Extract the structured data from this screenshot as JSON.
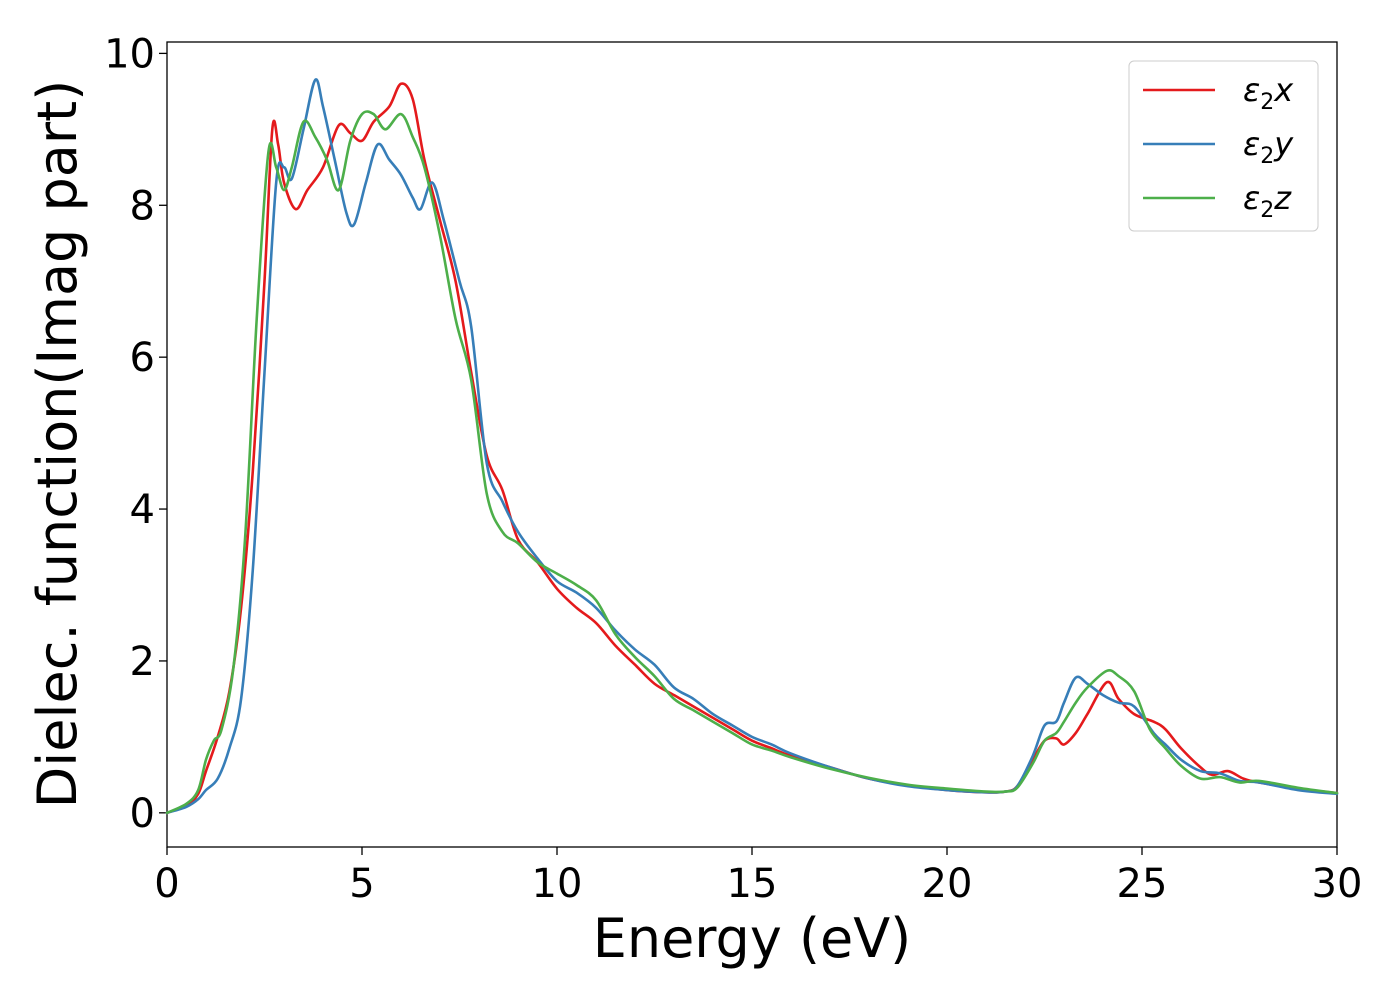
{
  "chart_data": {
    "type": "line",
    "title": "",
    "xlabel": "Energy (eV)",
    "ylabel": "Dielec. function(Imag part)",
    "xlim": [
      0,
      30
    ],
    "ylim": [
      -0.45,
      10.15
    ],
    "xticks": [
      0,
      5,
      10,
      15,
      20,
      25,
      30
    ],
    "yticks": [
      0,
      2,
      4,
      6,
      8,
      10
    ],
    "xtick_labels": [
      "0",
      "5",
      "10",
      "15",
      "20",
      "25",
      "30"
    ],
    "ytick_labels": [
      "0",
      "2",
      "4",
      "6",
      "8",
      "10"
    ],
    "grid": false,
    "legend_position": "top-right",
    "series": [
      {
        "name": "ε₂x",
        "legend_base": "ε",
        "legend_sub": "2",
        "legend_tail": "x",
        "color": "#e41a1c",
        "points": [
          [
            0,
            0
          ],
          [
            0.5,
            0.1
          ],
          [
            0.8,
            0.25
          ],
          [
            1.0,
            0.55
          ],
          [
            1.3,
            1.0
          ],
          [
            1.6,
            1.6
          ],
          [
            1.9,
            2.7
          ],
          [
            2.2,
            4.5
          ],
          [
            2.5,
            7.0
          ],
          [
            2.7,
            9.0
          ],
          [
            2.85,
            8.8
          ],
          [
            3.0,
            8.3
          ],
          [
            3.3,
            7.95
          ],
          [
            3.6,
            8.2
          ],
          [
            4.0,
            8.5
          ],
          [
            4.4,
            9.05
          ],
          [
            4.7,
            8.95
          ],
          [
            5.0,
            8.85
          ],
          [
            5.3,
            9.1
          ],
          [
            5.7,
            9.3
          ],
          [
            6.0,
            9.6
          ],
          [
            6.3,
            9.4
          ],
          [
            6.6,
            8.6
          ],
          [
            7.0,
            7.8
          ],
          [
            7.4,
            7.0
          ],
          [
            7.8,
            5.8
          ],
          [
            8.2,
            4.7
          ],
          [
            8.6,
            4.25
          ],
          [
            9.0,
            3.6
          ],
          [
            9.5,
            3.3
          ],
          [
            10.0,
            2.95
          ],
          [
            10.5,
            2.7
          ],
          [
            11.0,
            2.5
          ],
          [
            11.5,
            2.2
          ],
          [
            12.0,
            1.95
          ],
          [
            12.5,
            1.7
          ],
          [
            13.0,
            1.55
          ],
          [
            13.5,
            1.4
          ],
          [
            14.0,
            1.25
          ],
          [
            14.5,
            1.1
          ],
          [
            15.0,
            0.95
          ],
          [
            15.5,
            0.85
          ],
          [
            16.0,
            0.75
          ],
          [
            17.0,
            0.6
          ],
          [
            18.0,
            0.45
          ],
          [
            19.0,
            0.36
          ],
          [
            20.0,
            0.3
          ],
          [
            21.0,
            0.27
          ],
          [
            21.5,
            0.28
          ],
          [
            21.8,
            0.35
          ],
          [
            22.2,
            0.7
          ],
          [
            22.5,
            0.95
          ],
          [
            22.8,
            0.98
          ],
          [
            23.0,
            0.9
          ],
          [
            23.3,
            1.05
          ],
          [
            23.6,
            1.3
          ],
          [
            24.1,
            1.72
          ],
          [
            24.4,
            1.5
          ],
          [
            24.8,
            1.3
          ],
          [
            25.3,
            1.2
          ],
          [
            25.6,
            1.1
          ],
          [
            26.0,
            0.85
          ],
          [
            26.5,
            0.6
          ],
          [
            26.8,
            0.5
          ],
          [
            27.2,
            0.55
          ],
          [
            27.6,
            0.45
          ],
          [
            28.0,
            0.4
          ],
          [
            29.0,
            0.32
          ],
          [
            30.0,
            0.26
          ]
        ]
      },
      {
        "name": "ε₂y",
        "legend_base": "ε",
        "legend_sub": "2",
        "legend_tail": "y",
        "color": "#377eb8",
        "points": [
          [
            0,
            0
          ],
          [
            0.5,
            0.08
          ],
          [
            0.8,
            0.18
          ],
          [
            1.0,
            0.3
          ],
          [
            1.3,
            0.45
          ],
          [
            1.6,
            0.85
          ],
          [
            1.9,
            1.5
          ],
          [
            2.2,
            3.2
          ],
          [
            2.5,
            5.8
          ],
          [
            2.8,
            8.3
          ],
          [
            3.0,
            8.5
          ],
          [
            3.2,
            8.35
          ],
          [
            3.5,
            9.0
          ],
          [
            3.8,
            9.65
          ],
          [
            4.0,
            9.3
          ],
          [
            4.3,
            8.6
          ],
          [
            4.6,
            7.9
          ],
          [
            4.8,
            7.75
          ],
          [
            5.1,
            8.3
          ],
          [
            5.4,
            8.8
          ],
          [
            5.7,
            8.6
          ],
          [
            6.0,
            8.4
          ],
          [
            6.3,
            8.1
          ],
          [
            6.5,
            7.95
          ],
          [
            6.8,
            8.3
          ],
          [
            7.1,
            7.8
          ],
          [
            7.5,
            7.0
          ],
          [
            7.8,
            6.4
          ],
          [
            8.2,
            4.6
          ],
          [
            8.6,
            4.1
          ],
          [
            9.0,
            3.7
          ],
          [
            9.5,
            3.35
          ],
          [
            10.0,
            3.05
          ],
          [
            10.5,
            2.9
          ],
          [
            11.0,
            2.7
          ],
          [
            11.5,
            2.4
          ],
          [
            12.0,
            2.15
          ],
          [
            12.5,
            1.95
          ],
          [
            13.0,
            1.65
          ],
          [
            13.5,
            1.5
          ],
          [
            14.0,
            1.3
          ],
          [
            14.5,
            1.15
          ],
          [
            15.0,
            1.0
          ],
          [
            15.5,
            0.9
          ],
          [
            16.0,
            0.78
          ],
          [
            17.0,
            0.6
          ],
          [
            18.0,
            0.45
          ],
          [
            19.0,
            0.35
          ],
          [
            20.0,
            0.3
          ],
          [
            21.0,
            0.27
          ],
          [
            21.5,
            0.28
          ],
          [
            21.8,
            0.35
          ],
          [
            22.2,
            0.75
          ],
          [
            22.5,
            1.15
          ],
          [
            22.8,
            1.2
          ],
          [
            23.0,
            1.45
          ],
          [
            23.3,
            1.78
          ],
          [
            23.6,
            1.7
          ],
          [
            24.0,
            1.55
          ],
          [
            24.4,
            1.45
          ],
          [
            24.8,
            1.4
          ],
          [
            25.3,
            1.05
          ],
          [
            25.6,
            0.9
          ],
          [
            26.0,
            0.7
          ],
          [
            26.5,
            0.55
          ],
          [
            27.0,
            0.52
          ],
          [
            27.5,
            0.42
          ],
          [
            28.0,
            0.4
          ],
          [
            29.0,
            0.3
          ],
          [
            30.0,
            0.25
          ]
        ]
      },
      {
        "name": "ε₂z",
        "legend_base": "ε",
        "legend_sub": "2",
        "legend_tail": "z",
        "color": "#4daf4a",
        "points": [
          [
            0,
            0
          ],
          [
            0.5,
            0.12
          ],
          [
            0.8,
            0.3
          ],
          [
            1.0,
            0.7
          ],
          [
            1.2,
            0.95
          ],
          [
            1.4,
            1.1
          ],
          [
            1.7,
            1.9
          ],
          [
            2.0,
            3.6
          ],
          [
            2.3,
            6.5
          ],
          [
            2.6,
            8.7
          ],
          [
            2.8,
            8.5
          ],
          [
            3.0,
            8.2
          ],
          [
            3.2,
            8.5
          ],
          [
            3.5,
            9.1
          ],
          [
            3.8,
            8.9
          ],
          [
            4.1,
            8.6
          ],
          [
            4.4,
            8.2
          ],
          [
            4.7,
            8.85
          ],
          [
            5.0,
            9.2
          ],
          [
            5.3,
            9.2
          ],
          [
            5.6,
            9.0
          ],
          [
            6.0,
            9.2
          ],
          [
            6.3,
            8.9
          ],
          [
            6.6,
            8.5
          ],
          [
            7.0,
            7.6
          ],
          [
            7.4,
            6.5
          ],
          [
            7.8,
            5.7
          ],
          [
            8.2,
            4.2
          ],
          [
            8.6,
            3.7
          ],
          [
            9.0,
            3.55
          ],
          [
            9.5,
            3.3
          ],
          [
            10.0,
            3.15
          ],
          [
            10.5,
            3.0
          ],
          [
            11.0,
            2.8
          ],
          [
            11.5,
            2.35
          ],
          [
            12.0,
            2.05
          ],
          [
            12.5,
            1.8
          ],
          [
            13.0,
            1.5
          ],
          [
            13.5,
            1.35
          ],
          [
            14.0,
            1.2
          ],
          [
            14.5,
            1.05
          ],
          [
            15.0,
            0.9
          ],
          [
            15.5,
            0.82
          ],
          [
            16.0,
            0.73
          ],
          [
            17.0,
            0.58
          ],
          [
            18.0,
            0.46
          ],
          [
            19.0,
            0.37
          ],
          [
            20.0,
            0.32
          ],
          [
            21.0,
            0.28
          ],
          [
            21.5,
            0.28
          ],
          [
            21.8,
            0.33
          ],
          [
            22.2,
            0.65
          ],
          [
            22.5,
            0.95
          ],
          [
            22.8,
            1.05
          ],
          [
            23.0,
            1.2
          ],
          [
            23.3,
            1.45
          ],
          [
            23.6,
            1.65
          ],
          [
            24.1,
            1.87
          ],
          [
            24.4,
            1.8
          ],
          [
            24.8,
            1.6
          ],
          [
            25.2,
            1.1
          ],
          [
            25.6,
            0.85
          ],
          [
            26.0,
            0.62
          ],
          [
            26.5,
            0.45
          ],
          [
            27.0,
            0.47
          ],
          [
            27.5,
            0.4
          ],
          [
            28.0,
            0.42
          ],
          [
            29.0,
            0.33
          ],
          [
            30.0,
            0.26
          ]
        ]
      }
    ]
  }
}
